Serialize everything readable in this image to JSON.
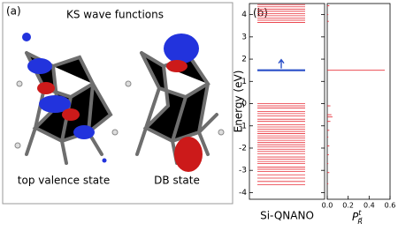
{
  "panel_a": {
    "label": "(a)",
    "title": "KS wave functions",
    "captions": [
      "top valence state",
      "DB state"
    ]
  },
  "chart_data": [
    {
      "type": "levels",
      "panel_label": "(b)",
      "ylabel": "Energy (eV)",
      "xlabel": "Si-QNANO",
      "ylim": [
        -4.3,
        4.5
      ],
      "yticks": [
        -4,
        -3,
        -2,
        -1,
        0,
        1,
        2,
        3,
        4
      ],
      "levels": {
        "color": "#e8303a",
        "values": [
          4.45,
          4.35,
          4.25,
          4.15,
          4.05,
          3.95,
          3.85,
          3.75,
          3.65,
          0.0,
          -0.1,
          -0.2,
          -0.35,
          -0.45,
          -0.55,
          -0.7,
          -0.8,
          -0.95,
          -1.05,
          -1.15,
          -1.25,
          -1.35,
          -1.45,
          -1.55,
          -1.65,
          -1.75,
          -1.85,
          -1.95,
          -2.05,
          -2.15,
          -2.25,
          -2.4,
          -2.5,
          -2.6,
          -2.7,
          -2.85,
          -2.95,
          -3.05,
          -3.2,
          -3.35,
          -3.5,
          -3.65
        ]
      },
      "db_level": {
        "color": "#2a4fc8",
        "value": 1.5
      }
    },
    {
      "type": "spike",
      "xlabel": {
        "base": "P",
        "sub": "R⃗",
        "sup": "t"
      },
      "ylim": [
        -4.3,
        4.5
      ],
      "xlim": [
        0,
        0.6
      ],
      "xticks": [
        {
          "value": 0,
          "label": "0.0"
        },
        0.2,
        0.4,
        0.6
      ],
      "color": "#e8303a",
      "y": [
        4.4,
        4.0,
        3.7,
        1.5,
        -0.1,
        -0.5,
        -0.6,
        -0.8,
        -1.2,
        -1.5,
        -1.9,
        -2.3,
        -2.7,
        -3.1,
        -3.6
      ],
      "values": [
        0.02,
        0.01,
        0.015,
        0.55,
        0.03,
        0.04,
        0.05,
        0.03,
        0.02,
        0.01,
        0.02,
        0.015,
        0.01,
        0.02,
        0.01
      ]
    }
  ]
}
